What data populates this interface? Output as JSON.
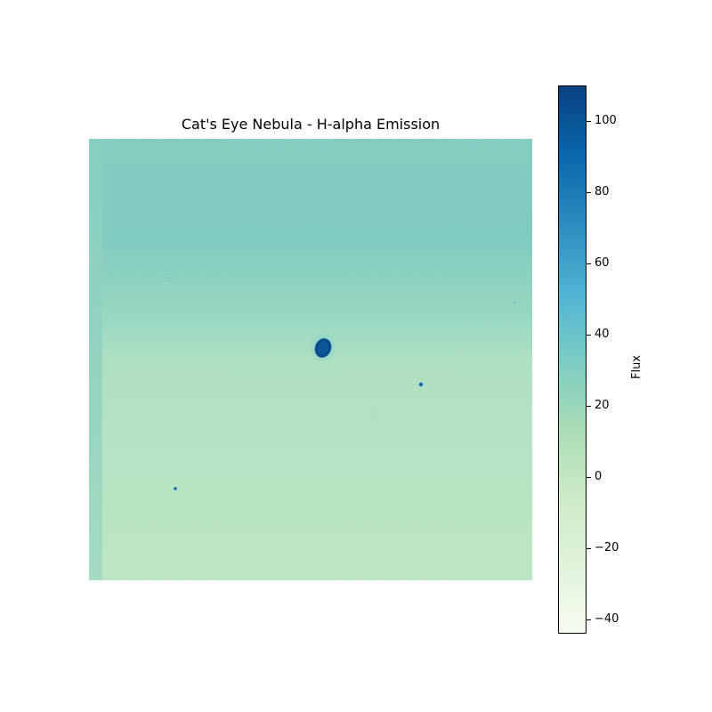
{
  "title": "Cat's Eye Nebula - H-alpha Emission",
  "colorbar": {
    "label": "Flux",
    "min": -44,
    "max": 110,
    "ticks": [
      {
        "value": 100,
        "label": "100"
      },
      {
        "value": 80,
        "label": "80"
      },
      {
        "value": 60,
        "label": "60"
      },
      {
        "value": 40,
        "label": "40"
      },
      {
        "value": 20,
        "label": "20"
      },
      {
        "value": 0,
        "label": "0"
      },
      {
        "value": -20,
        "label": "−20"
      },
      {
        "value": -40,
        "label": "−40"
      }
    ],
    "colormap": "GnBu",
    "colors": {
      "low": "#f7fcf0",
      "c1": "#e0f3db",
      "c2": "#ccebc5",
      "c3": "#a8ddb5",
      "c4": "#7bccc4",
      "c5": "#4eb3d3",
      "c6": "#2b8cbe",
      "c7": "#0868ac",
      "high": "#084081"
    }
  },
  "image": {
    "description_colors": {
      "upper_field": "#7fcbbf",
      "lower_field": "#b5e2c0",
      "left_strip": "#93d3bf",
      "nebula_core": "#084a8a"
    }
  }
}
